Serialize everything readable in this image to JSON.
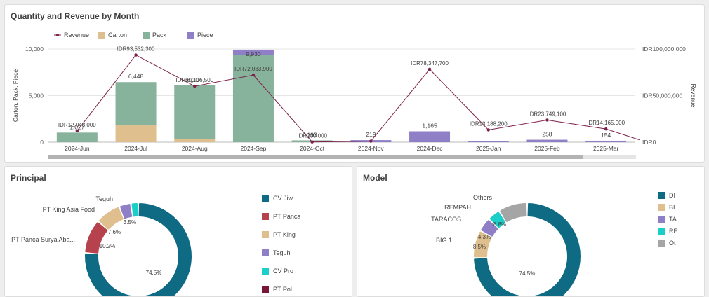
{
  "combo": {
    "title": "Quantity and Revenue by Month"
  },
  "principal": {
    "title": "Principal",
    "legend": [
      {
        "label": "CV Jiw",
        "color": "#0f6b84"
      },
      {
        "label": "PT Panca",
        "color": "#b5424c"
      },
      {
        "label": "PT King",
        "color": "#dfbf8d"
      },
      {
        "label": "Teguh",
        "color": "#8f7fc7"
      },
      {
        "label": "CV Pro",
        "color": "#19cfc8"
      },
      {
        "label": "PT Pol",
        "color": "#7b1736"
      }
    ]
  },
  "model": {
    "title": "Model",
    "legend": [
      {
        "label": "DI",
        "color": "#0f6b84"
      },
      {
        "label": "BI",
        "color": "#dfbf8d"
      },
      {
        "label": "TA",
        "color": "#8f7fc7"
      },
      {
        "label": "RE",
        "color": "#19cfc8"
      },
      {
        "label": "Ot",
        "color": "#a5a5a5"
      }
    ]
  },
  "chart_data": [
    {
      "type": "bar",
      "title": "Quantity and Revenue by Month",
      "categories": [
        "2024-Jun",
        "2024-Jul",
        "2024-Aug",
        "2024-Sep",
        "2024-Oct",
        "2024-Nov",
        "2024-Dec",
        "2025-Jan",
        "2025-Feb",
        "2025-Mar"
      ],
      "series": [
        {
          "name": "Carton",
          "color": "#dfbf8d",
          "values": [
            0,
            1800,
            300,
            0,
            0,
            0,
            0,
            0,
            0,
            0
          ]
        },
        {
          "name": "Pack",
          "color": "#87b29b",
          "values": [
            1027,
            4648,
            5804,
            9330,
            193,
            0,
            0,
            0,
            0,
            0
          ]
        },
        {
          "name": "Piece",
          "color": "#8f7fc7",
          "values": [
            0,
            0,
            0,
            600,
            0,
            219,
            1165,
            150,
            258,
            154
          ]
        },
        {
          "name": "Revenue",
          "type": "line",
          "color": "#7d1f4a",
          "axis": "right",
          "values": [
            12048000,
            93532300,
            60106500,
            72083900,
            200000,
            1100000,
            78347700,
            13188200,
            23749100,
            14165000
          ]
        }
      ],
      "total_labels": [
        "1,027",
        "6,448",
        "6,104",
        "9,930",
        "193",
        "219",
        "1,165",
        "",
        "258",
        "154"
      ],
      "revenue_labels": [
        "IDR12,048,000",
        "IDR93,532,300",
        "IDR60,106,500",
        "IDR72,083,900",
        "IDR200,000",
        "",
        "IDR78,347,700",
        "IDR13,188,200",
        "IDR23,749,100",
        "IDR14,165,000"
      ],
      "ylabel": "Carton, Pack, Piece",
      "ylabel_right": "Revenue",
      "ylim": [
        0,
        10000
      ],
      "ylim_right": [
        0,
        100000000
      ],
      "yticks": [
        "0",
        "5,000",
        "10,000"
      ],
      "yticks_right": [
        "IDR0",
        "IDR50,000,000",
        "IDR100,000,000"
      ],
      "legend": "top-left",
      "grid": true
    },
    {
      "type": "pie",
      "title": "Principal",
      "labels": [
        "CV Jiw",
        "PT Panca Surya Aba...",
        "PT King Asia Food",
        "Teguh",
        "CV Pro"
      ],
      "values": [
        74.5,
        10.2,
        7.6,
        3.5,
        2.2
      ],
      "pct_labels": [
        "74.5%",
        "10.2%",
        "7.6%",
        "3.5%",
        ""
      ],
      "colors": [
        "#0f6b84",
        "#b5424c",
        "#dfbf8d",
        "#8f7fc7",
        "#19cfc8"
      ],
      "callout_labels": [
        "",
        "PT Panca Surya Aba...",
        "PT King Asia Food",
        "Teguh",
        ""
      ]
    },
    {
      "type": "pie",
      "title": "Model",
      "labels": [
        "DI",
        "BIG 1",
        "TARACOS",
        "REMPAH",
        "Others"
      ],
      "values": [
        74.5,
        8.5,
        4.3,
        3.9,
        8.8
      ],
      "pct_labels": [
        "74.5%",
        "8.5%",
        "4.3%",
        "",
        "8.8%"
      ],
      "colors": [
        "#0f6b84",
        "#dfbf8d",
        "#8f7fc7",
        "#19cfc8",
        "#a5a5a5"
      ],
      "callout_labels": [
        "",
        "BIG 1",
        "TARACOS",
        "REMPAH",
        "Others"
      ]
    }
  ]
}
